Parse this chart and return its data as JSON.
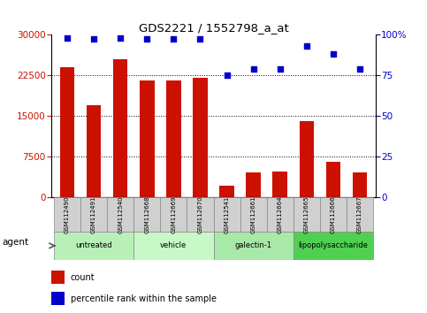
{
  "title": "GDS2221 / 1552798_a_at",
  "samples": [
    "GSM112490",
    "GSM112491",
    "GSM112540",
    "GSM112668",
    "GSM112669",
    "GSM112670",
    "GSM112541",
    "GSM112661",
    "GSM112664",
    "GSM112665",
    "GSM112666",
    "GSM112667"
  ],
  "counts": [
    24000,
    17000,
    25500,
    21500,
    21500,
    22000,
    2200,
    4500,
    4700,
    14000,
    6500,
    4500
  ],
  "percentiles": [
    98,
    97,
    98,
    97,
    97,
    97,
    75,
    79,
    79,
    93,
    88,
    79
  ],
  "groups": [
    {
      "label": "untreated",
      "start": 0,
      "end": 3,
      "color": "#b8f0b8"
    },
    {
      "label": "vehicle",
      "start": 3,
      "end": 6,
      "color": "#c8f8c8"
    },
    {
      "label": "galectin-1",
      "start": 6,
      "end": 9,
      "color": "#a8e8a8"
    },
    {
      "label": "lipopolysaccharide",
      "start": 9,
      "end": 12,
      "color": "#50d050"
    }
  ],
  "ylim_left": [
    0,
    30000
  ],
  "yticks_left": [
    0,
    7500,
    15000,
    22500,
    30000
  ],
  "ylim_right": [
    0,
    100
  ],
  "yticks_right": [
    0,
    25,
    50,
    75,
    100
  ],
  "bar_color": "#cc1100",
  "dot_color": "#0000cc",
  "bar_width": 0.55,
  "agent_label": "agent",
  "legend_count_label": "count",
  "legend_pct_label": "percentile rank within the sample",
  "bg_color": "#ffffff",
  "sample_box_color": "#d0d0d0"
}
